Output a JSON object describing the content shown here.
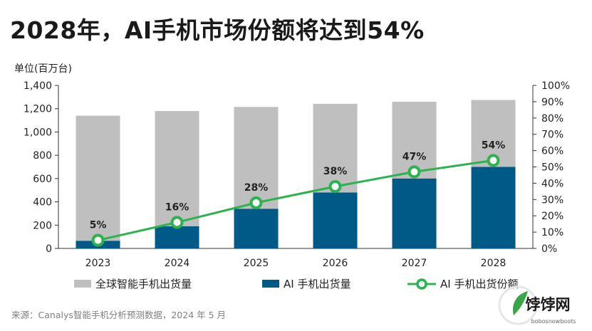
{
  "title": "2028年，AI手机市场份额将达到54%",
  "unit_label": "单位(百万台)",
  "source": "来源：Canalys智能手机分析预测数据，2024 年 5 月",
  "watermark": {
    "logo_char": "e",
    "text": "饽饽网",
    "url": "bobosnowboots"
  },
  "colors": {
    "total": "#bfbfbf",
    "ai": "#005a87",
    "share": "#2bb34f",
    "axis": "#333333"
  },
  "chart_data": {
    "type": "bar+line",
    "categories": [
      "2023",
      "2024",
      "2025",
      "2026",
      "2027",
      "2028"
    ],
    "y_left": {
      "min": 0,
      "max": 1400,
      "ticks": [
        "0",
        "200",
        "400",
        "600",
        "800",
        "1,000",
        "1,200",
        "1,400"
      ]
    },
    "y_right": {
      "min": 0,
      "max": 100,
      "ticks": [
        "0%",
        "10%",
        "20%",
        "30%",
        "40%",
        "50%",
        "60%",
        "70%",
        "80%",
        "90%",
        "100%"
      ]
    },
    "series": [
      {
        "name": "全球智能手机出货量",
        "kind": "bar",
        "axis": "left",
        "values": [
          1140,
          1180,
          1215,
          1242,
          1260,
          1275
        ]
      },
      {
        "name": "AI 手机出货量",
        "kind": "bar",
        "axis": "left",
        "values": [
          65,
          190,
          340,
          480,
          600,
          700
        ]
      },
      {
        "name": "AI 手机出货份额",
        "kind": "line",
        "axis": "right",
        "values": [
          5,
          16,
          28,
          38,
          47,
          54
        ],
        "labels": [
          "5%",
          "16%",
          "28%",
          "38%",
          "47%",
          "54%"
        ]
      }
    ],
    "legend": [
      {
        "label": "全球智能手机出货量",
        "kind": "bar"
      },
      {
        "label": "AI 手机出货量",
        "kind": "bar"
      },
      {
        "label": "AI 手机出货份额",
        "kind": "line"
      }
    ]
  }
}
